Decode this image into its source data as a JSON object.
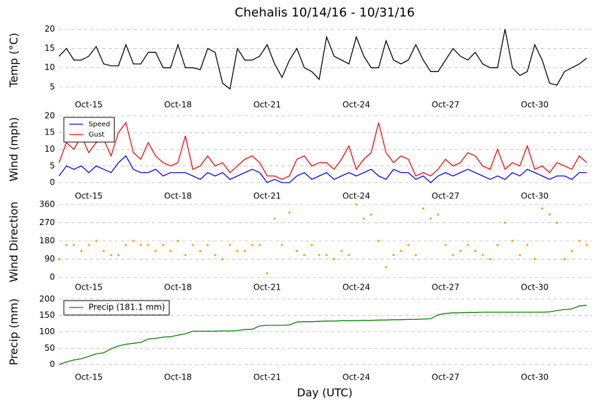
{
  "title": "Chehalis 10/14/16 - 10/31/16",
  "chart_data": [
    {
      "type": "line",
      "ylabel": "Temp (°C)",
      "color": "#000000",
      "grid": true,
      "xlim": [
        14,
        31.92
      ],
      "ylim": [
        3,
        21
      ],
      "yticks": [
        5,
        10,
        15,
        20
      ],
      "xticks": [
        {
          "value": 15,
          "label": "Oct-15"
        },
        {
          "value": 18,
          "label": "Oct-18"
        },
        {
          "value": 21,
          "label": "Oct-21"
        },
        {
          "value": 24,
          "label": "Oct-24"
        },
        {
          "value": 27,
          "label": "Oct-27"
        },
        {
          "value": 30,
          "label": "Oct-30"
        }
      ],
      "x": [
        14,
        14.25,
        14.5,
        14.75,
        15,
        15.25,
        15.5,
        15.75,
        16,
        16.25,
        16.5,
        16.75,
        17,
        17.25,
        17.5,
        17.75,
        18,
        18.25,
        18.5,
        18.75,
        19,
        19.25,
        19.5,
        19.75,
        20,
        20.25,
        20.5,
        20.75,
        21,
        21.25,
        21.5,
        21.75,
        22,
        22.25,
        22.5,
        22.75,
        23,
        23.25,
        23.5,
        23.75,
        24,
        24.25,
        24.5,
        24.75,
        25,
        25.25,
        25.5,
        25.75,
        26,
        26.25,
        26.5,
        26.75,
        27,
        27.25,
        27.5,
        27.75,
        28,
        28.25,
        28.5,
        28.75,
        29,
        29.25,
        29.5,
        29.75,
        30,
        30.25,
        30.5,
        30.75,
        31,
        31.25,
        31.5,
        31.75
      ],
      "values": [
        13,
        15,
        12,
        12,
        13,
        15.5,
        11,
        10.5,
        10.5,
        16,
        11,
        11,
        14,
        14,
        10,
        10,
        16,
        10,
        10,
        9.5,
        15,
        14,
        6,
        4.5,
        15,
        12,
        12,
        13,
        16,
        11,
        7.5,
        12,
        15,
        10,
        9,
        7,
        18,
        13,
        12,
        11,
        18,
        13,
        10,
        10,
        17,
        12,
        11,
        12,
        16,
        12,
        9,
        9,
        12,
        15,
        13,
        12,
        14,
        11,
        10,
        10,
        20,
        10,
        8,
        9,
        16,
        12,
        6,
        5.5,
        9,
        10,
        11,
        12.5
      ]
    },
    {
      "type": "line",
      "ylabel": "Wind (mph)",
      "grid": true,
      "legend": "upper left",
      "xlim": [
        14,
        31.92
      ],
      "ylim": [
        -1,
        21
      ],
      "yticks": [
        0,
        5,
        10,
        15,
        20
      ],
      "xticks": [
        {
          "value": 15,
          "label": "Oct-15"
        },
        {
          "value": 18,
          "label": "Oct-18"
        },
        {
          "value": 21,
          "label": "Oct-21"
        },
        {
          "value": 24,
          "label": "Oct-24"
        },
        {
          "value": 27,
          "label": "Oct-27"
        },
        {
          "value": 30,
          "label": "Oct-30"
        }
      ],
      "x": [
        14,
        14.25,
        14.5,
        14.75,
        15,
        15.25,
        15.5,
        15.75,
        16,
        16.25,
        16.5,
        16.75,
        17,
        17.25,
        17.5,
        17.75,
        18,
        18.25,
        18.5,
        18.75,
        19,
        19.25,
        19.5,
        19.75,
        20,
        20.25,
        20.5,
        20.75,
        21,
        21.25,
        21.5,
        21.75,
        22,
        22.25,
        22.5,
        22.75,
        23,
        23.25,
        23.5,
        23.75,
        24,
        24.25,
        24.5,
        24.75,
        25,
        25.25,
        25.5,
        25.75,
        26,
        26.25,
        26.5,
        26.75,
        27,
        27.25,
        27.5,
        27.75,
        28,
        28.25,
        28.5,
        28.75,
        29,
        29.25,
        29.5,
        29.75,
        30,
        30.25,
        30.5,
        30.75,
        31,
        31.25,
        31.5,
        31.75
      ],
      "series": [
        {
          "name": "Speed",
          "color": "#0000ff",
          "values": [
            2,
            5,
            4,
            5,
            3,
            5,
            4,
            3,
            6,
            8,
            4,
            3,
            3,
            4,
            2,
            3,
            3,
            3,
            2,
            1,
            3,
            2,
            3,
            1,
            2,
            3,
            4,
            3,
            0,
            1,
            0,
            0,
            2,
            3,
            1,
            2,
            3,
            1,
            2,
            3,
            2,
            3,
            4,
            2,
            1,
            4,
            3,
            3,
            1,
            2,
            0,
            2,
            3,
            2,
            3,
            4,
            3,
            2,
            1,
            2,
            1,
            3,
            2,
            4,
            3,
            2,
            1,
            2,
            2,
            1,
            3,
            3
          ]
        },
        {
          "name": "Gust",
          "color": "#ff0000",
          "values": [
            6,
            12,
            10,
            14,
            9,
            12,
            13,
            8,
            15,
            18,
            9,
            7,
            12,
            8,
            6,
            5,
            6,
            14,
            4,
            5,
            8,
            5,
            6,
            3,
            5,
            7,
            8,
            6,
            2,
            2,
            1,
            2,
            7,
            8,
            5,
            6,
            6,
            4,
            7,
            11,
            4,
            7,
            9,
            18,
            9,
            6,
            8,
            7,
            2,
            3,
            2,
            4,
            7,
            5,
            6,
            9,
            8,
            5,
            4,
            10,
            4,
            6,
            5,
            11,
            4,
            5,
            3,
            6,
            5,
            4,
            8,
            6
          ]
        }
      ]
    },
    {
      "type": "scatter",
      "ylabel": "Wind Direction",
      "color": "#ffa500",
      "grid": true,
      "xlim": [
        14,
        31.92
      ],
      "ylim": [
        -30,
        380
      ],
      "yticks": [
        0,
        90,
        180,
        270,
        360
      ],
      "xticks": [
        {
          "value": 15,
          "label": "Oct-15"
        },
        {
          "value": 18,
          "label": "Oct-18"
        },
        {
          "value": 21,
          "label": "Oct-21"
        },
        {
          "value": 24,
          "label": "Oct-24"
        },
        {
          "value": 27,
          "label": "Oct-27"
        },
        {
          "value": 30,
          "label": "Oct-30"
        }
      ],
      "x": [
        14,
        14.25,
        14.5,
        14.75,
        15,
        15.25,
        15.5,
        15.75,
        16,
        16.25,
        16.5,
        16.75,
        17,
        17.25,
        17.5,
        17.75,
        18,
        18.25,
        18.5,
        18.75,
        19,
        19.25,
        19.5,
        19.75,
        20,
        20.25,
        20.5,
        20.75,
        21,
        21.25,
        21.5,
        21.75,
        22,
        22.25,
        22.5,
        22.75,
        23,
        23.25,
        23.5,
        23.75,
        24,
        24.25,
        24.5,
        24.75,
        25,
        25.25,
        25.5,
        25.75,
        26,
        26.25,
        26.5,
        26.75,
        27,
        27.25,
        27.5,
        27.75,
        28,
        28.25,
        28.5,
        28.75,
        29,
        29.25,
        29.5,
        29.75,
        30,
        30.25,
        30.5,
        30.75,
        31,
        31.25,
        31.5,
        31.75
      ],
      "values": [
        90,
        160,
        160,
        130,
        160,
        180,
        130,
        110,
        110,
        160,
        180,
        160,
        160,
        130,
        160,
        130,
        180,
        110,
        160,
        130,
        160,
        110,
        90,
        160,
        130,
        130,
        160,
        160,
        20,
        290,
        160,
        320,
        130,
        110,
        160,
        110,
        110,
        90,
        130,
        110,
        360,
        290,
        310,
        180,
        50,
        110,
        130,
        160,
        110,
        340,
        290,
        310,
        160,
        110,
        130,
        160,
        130,
        110,
        90,
        160,
        270,
        180,
        110,
        160,
        90,
        340,
        310,
        270,
        90,
        130,
        180,
        160
      ]
    },
    {
      "type": "line",
      "ylabel": "Precip (mm)",
      "xlabel": "Day (UTC)",
      "grid": true,
      "legend": "upper left",
      "xlim": [
        14,
        31.92
      ],
      "ylim": [
        -10,
        210
      ],
      "yticks": [
        0,
        50,
        100,
        150,
        200
      ],
      "xticks": [
        {
          "value": 15,
          "label": "Oct-15"
        },
        {
          "value": 18,
          "label": "Oct-18"
        },
        {
          "value": 21,
          "label": "Oct-21"
        },
        {
          "value": 24,
          "label": "Oct-24"
        },
        {
          "value": 27,
          "label": "Oct-27"
        },
        {
          "value": 30,
          "label": "Oct-30"
        }
      ],
      "x": [
        14,
        14.25,
        14.5,
        14.75,
        15,
        15.25,
        15.5,
        15.75,
        16,
        16.25,
        16.5,
        16.75,
        17,
        17.25,
        17.5,
        17.75,
        18,
        18.25,
        18.5,
        18.75,
        19,
        19.25,
        19.5,
        19.75,
        20,
        20.25,
        20.5,
        20.75,
        21,
        21.25,
        21.5,
        21.75,
        22,
        22.25,
        22.5,
        22.75,
        23,
        23.25,
        23.5,
        23.75,
        24,
        24.25,
        24.5,
        24.75,
        25,
        25.25,
        25.5,
        25.75,
        26,
        26.25,
        26.5,
        26.75,
        27,
        27.25,
        27.5,
        27.75,
        28,
        28.25,
        28.5,
        28.75,
        29,
        29.25,
        29.5,
        29.75,
        30,
        30.25,
        30.5,
        30.75,
        31,
        31.25,
        31.5,
        31.75
      ],
      "series": [
        {
          "name": "Precip (181.1 mm)",
          "color": "#008000",
          "values": [
            0,
            8,
            14,
            18,
            25,
            33,
            36,
            48,
            57,
            62,
            65,
            68,
            78,
            80,
            84,
            85,
            90,
            94,
            102,
            102,
            102,
            102,
            103,
            103,
            104,
            107,
            108,
            118,
            120,
            120,
            120,
            121,
            130,
            131,
            131,
            132,
            133,
            133,
            134,
            134,
            134,
            135,
            135,
            136,
            136,
            137,
            137,
            138,
            138,
            139,
            140,
            152,
            156,
            158,
            158,
            159,
            159,
            160,
            160,
            160,
            160,
            160,
            160,
            160,
            160,
            160,
            161,
            165,
            168,
            170,
            179,
            181.1
          ]
        }
      ]
    }
  ]
}
